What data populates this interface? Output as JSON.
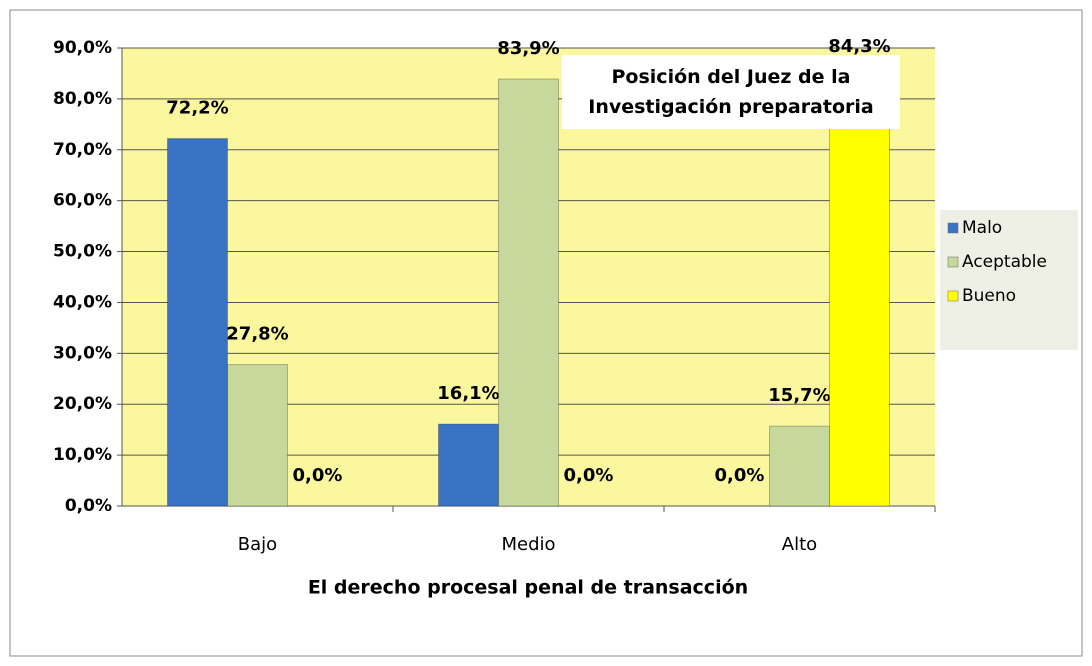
{
  "chart_data": {
    "type": "bar",
    "title": "Posición del Juez de la Investigación preparatoria",
    "x_label": "El derecho procesal penal de transacción",
    "categories": [
      "Bajo",
      "Medio",
      "Alto"
    ],
    "series": [
      {
        "name": "Malo",
        "color": "#3a73c4",
        "values": [
          72.2,
          16.1,
          0.0
        ],
        "value_labels": [
          "72,2%",
          "16,1%",
          "0,0%"
        ]
      },
      {
        "name": "Aceptable",
        "color": "#c6d89c",
        "values": [
          27.8,
          83.9,
          15.7
        ],
        "value_labels": [
          "27,8%",
          "83,9%",
          "15,7%"
        ]
      },
      {
        "name": "Bueno",
        "color": "#ffff00",
        "values": [
          0.0,
          0.0,
          84.3
        ],
        "value_labels": [
          "0,0%",
          "0,0%",
          "84,3%"
        ]
      }
    ],
    "ylim": [
      0,
      90
    ],
    "yticks": [
      {
        "value": 0,
        "label": "0,0%"
      },
      {
        "value": 10,
        "label": "10,0%"
      },
      {
        "value": 20,
        "label": "20,0%"
      },
      {
        "value": 30,
        "label": "30,0%"
      },
      {
        "value": 40,
        "label": "40,0%"
      },
      {
        "value": 50,
        "label": "50,0%"
      },
      {
        "value": 60,
        "label": "60,0%"
      },
      {
        "value": 70,
        "label": "70,0%"
      },
      {
        "value": 80,
        "label": "80,0%"
      },
      {
        "value": 90,
        "label": "90,0%"
      }
    ],
    "grid": true,
    "legend": "right",
    "plot_background": "#fbf79e"
  }
}
